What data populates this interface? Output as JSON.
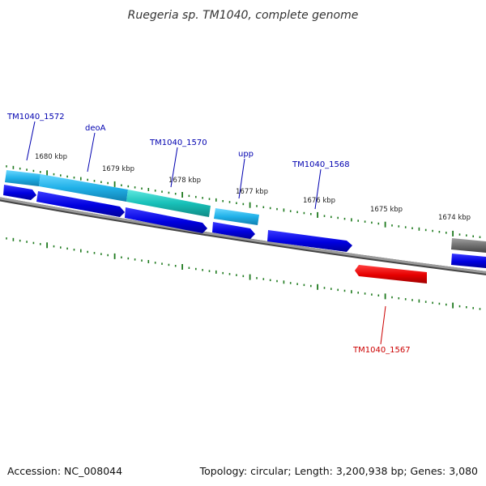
{
  "title": "Ruegeria sp. TM1040, complete genome",
  "footer": {
    "accession": "Accession: NC_008044",
    "summary": "Topology: circular; Length: 3,200,938 bp; Genes: 3,080"
  },
  "colors": {
    "background": "#ffffff",
    "backbone": "#808080",
    "tick": "#1e7a1e",
    "cds_forward": "#0000e6",
    "cds_reverse": "#e60000",
    "rna_cyan": "#20b0e8",
    "rna_teal": "#18c0b8",
    "rna_gray": "#707070",
    "label_forward": "#0000b0",
    "label_reverse": "#cc0000"
  },
  "scale_labels": [
    "1680 kbp",
    "1679 kbp",
    "1678 kbp",
    "1677 kbp",
    "1676 kbp",
    "1675 kbp",
    "1674 kbp"
  ],
  "gene_labels": [
    {
      "text": "TM1040_1572",
      "strand": "forward"
    },
    {
      "text": "deoA",
      "strand": "forward"
    },
    {
      "text": "TM1040_1570",
      "strand": "forward"
    },
    {
      "text": "upp",
      "strand": "forward"
    },
    {
      "text": "TM1040_1568",
      "strand": "forward"
    },
    {
      "text": "TM1040_1567",
      "strand": "reverse"
    }
  ]
}
